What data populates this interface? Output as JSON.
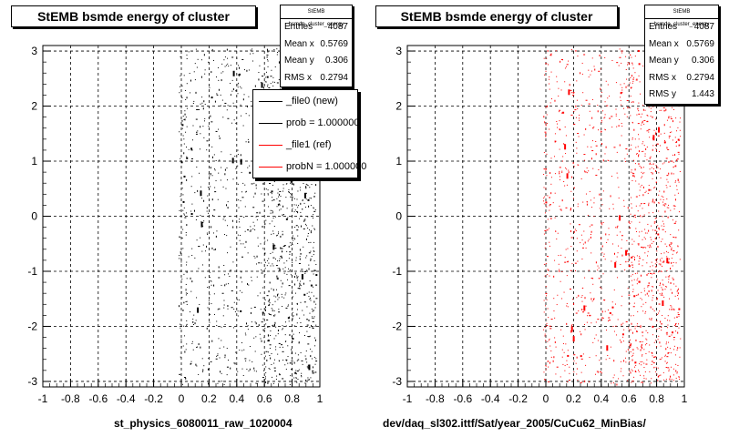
{
  "chart_data": [
    {
      "type": "scatter",
      "title": "StEMB bsmde energy of cluster",
      "xlabel": "st_physics_6080011_raw_1020004",
      "xlim": [
        -1,
        1
      ],
      "ylim": [
        -3.1,
        3.1
      ],
      "x_ticks": [
        "-1",
        "-0.8",
        "-0.6",
        "-0.4",
        "-0.2",
        "0",
        "0.2",
        "0.4",
        "0.6",
        "0.8",
        "1"
      ],
      "y_ticks": [
        "-3",
        "-2",
        "-1",
        "0",
        "1",
        "2",
        "3"
      ],
      "grid": true,
      "marker_color": "#000000",
      "stats": {
        "name": "StEMB bsmde_cluster_energy",
        "rows": [
          {
            "label": "Entries",
            "value": "4087"
          },
          {
            "label": "Mean x",
            "value": "0.5769"
          },
          {
            "label": "Mean y",
            "value": "0.306"
          },
          {
            "label": "RMS x",
            "value": "0.2794"
          }
        ]
      },
      "legend": {
        "placement": "top-right",
        "entries": [
          {
            "label": "_file0 (new)",
            "color": "#000000"
          },
          {
            "label": "prob = 1.000000",
            "color": "#000000"
          },
          {
            "label": "_file1 (ref)",
            "color": "#ff0000"
          },
          {
            "label": "probN = 1.000000",
            "color": "#ff0000"
          }
        ]
      }
    },
    {
      "type": "scatter",
      "title": "StEMB bsmde energy of cluster",
      "xlabel": "dev/daq_sl302.ittf/Sat/year_2005/CuCu62_MinBias/",
      "xlim": [
        -1,
        1
      ],
      "ylim": [
        -3.1,
        3.1
      ],
      "x_ticks": [
        "-1",
        "-0.8",
        "-0.6",
        "-0.4",
        "-0.2",
        "0",
        "0.2",
        "0.4",
        "0.6",
        "0.8",
        "1"
      ],
      "y_ticks": [
        "-3",
        "-2",
        "-1",
        "0",
        "1",
        "2",
        "3"
      ],
      "grid": true,
      "marker_color": "#ff0000",
      "stats": {
        "name": "StEMB bsmde_cluster_energy",
        "rows": [
          {
            "label": "Entries",
            "value": "4087"
          },
          {
            "label": "Mean x",
            "value": "0.5769"
          },
          {
            "label": "Mean y",
            "value": "0.306"
          },
          {
            "label": "RMS x",
            "value": "0.2794"
          },
          {
            "label": "RMS y",
            "value": "1.443"
          }
        ]
      }
    }
  ]
}
